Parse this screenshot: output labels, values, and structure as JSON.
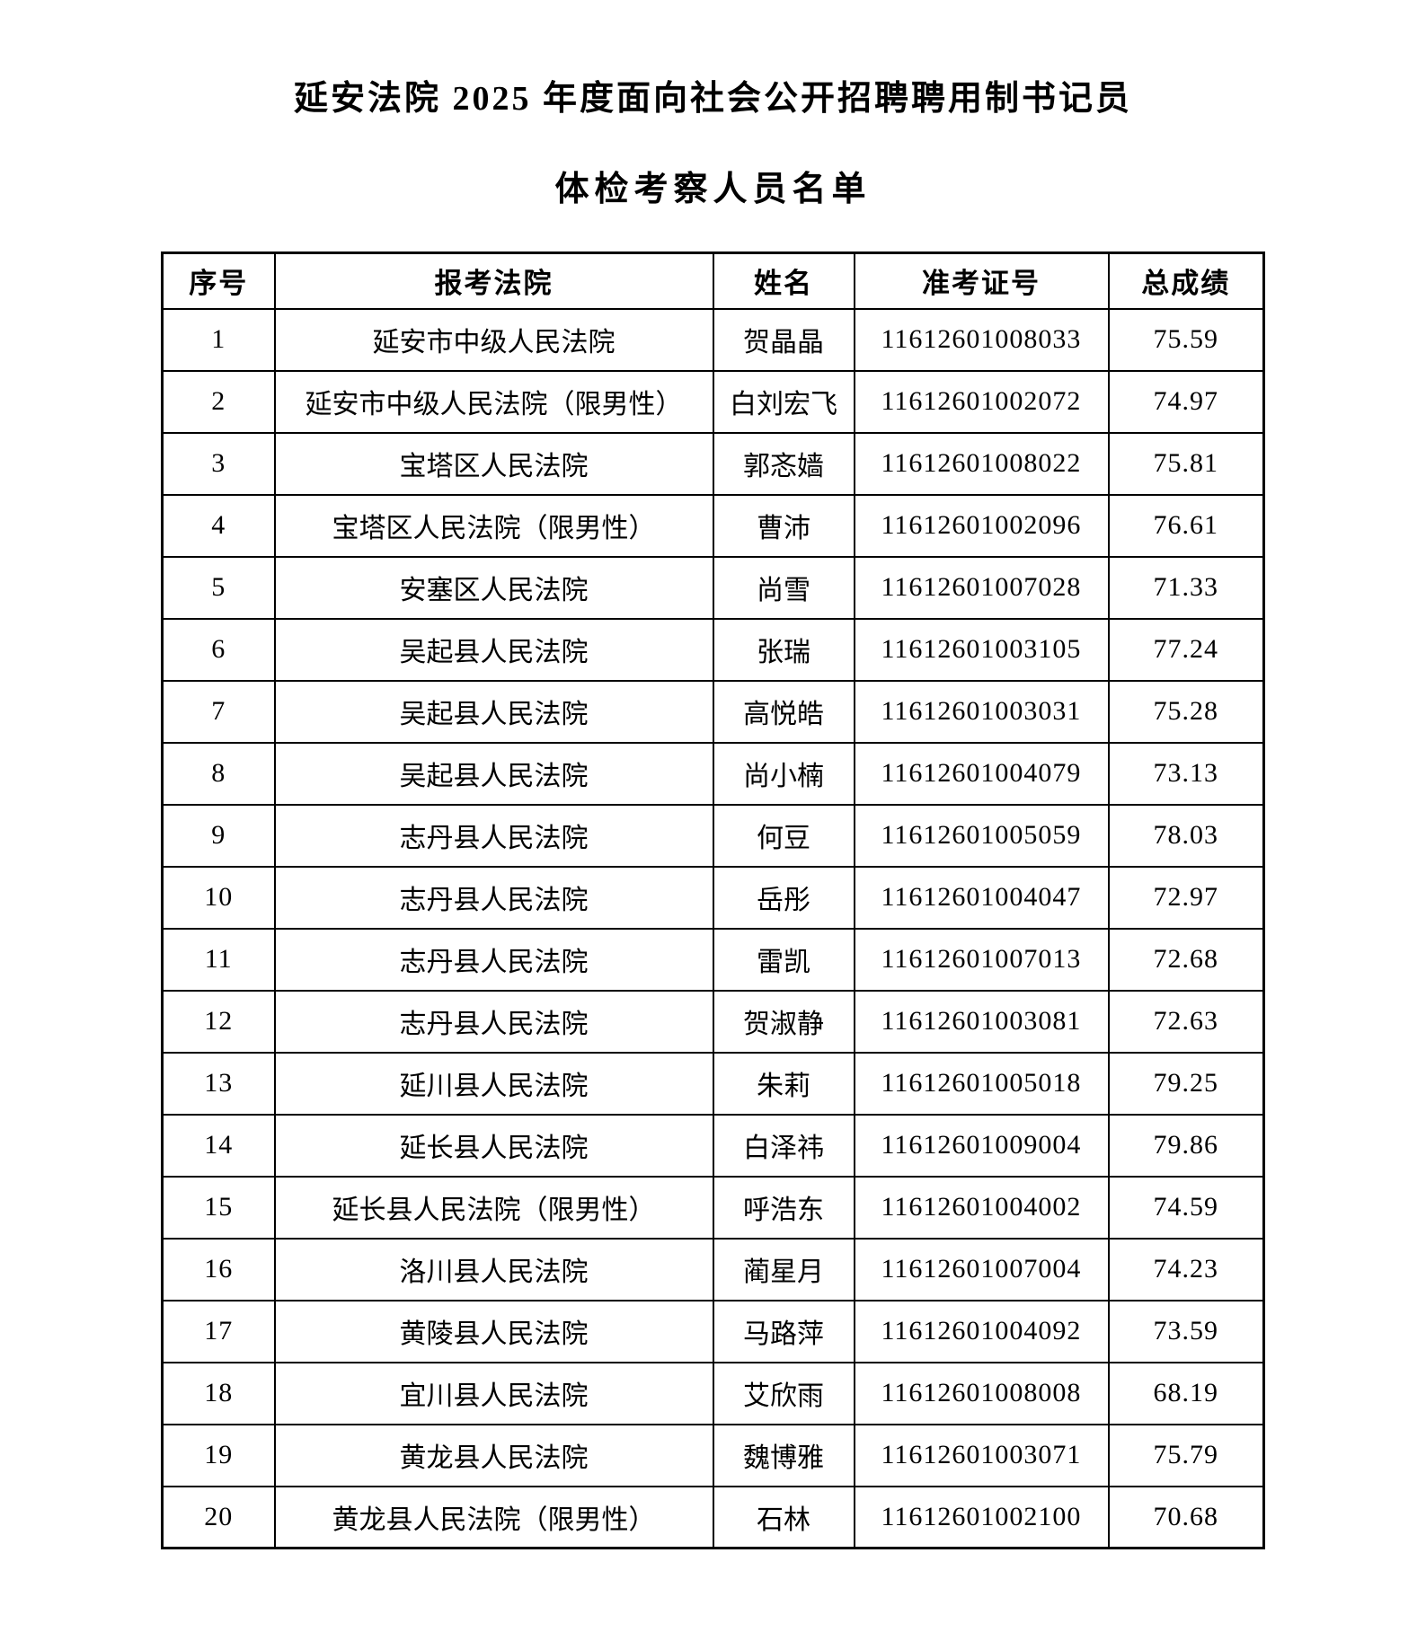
{
  "page": {
    "title_line1": "延安法院 2025 年度面向社会公开招聘聘用制书记员",
    "title_line2": "体检考察人员名单"
  },
  "table": {
    "headers": [
      "序号",
      "报考法院",
      "姓名",
      "准考证号",
      "总成绩"
    ],
    "rows": [
      {
        "no": "1",
        "court": "延安市中级人民法院",
        "name": "贺晶晶",
        "ticket": "11612601008033",
        "score": "75.59"
      },
      {
        "no": "2",
        "court": "延安市中级人民法院（限男性）",
        "name": "白刘宏飞",
        "ticket": "11612601002072",
        "score": "74.97"
      },
      {
        "no": "3",
        "court": "宝塔区人民法院",
        "name": "郭忞嫱",
        "ticket": "11612601008022",
        "score": "75.81"
      },
      {
        "no": "4",
        "court": "宝塔区人民法院（限男性）",
        "name": "曹沛",
        "ticket": "11612601002096",
        "score": "76.61"
      },
      {
        "no": "5",
        "court": "安塞区人民法院",
        "name": "尚雪",
        "ticket": "11612601007028",
        "score": "71.33"
      },
      {
        "no": "6",
        "court": "吴起县人民法院",
        "name": "张瑞",
        "ticket": "11612601003105",
        "score": "77.24"
      },
      {
        "no": "7",
        "court": "吴起县人民法院",
        "name": "高悦皓",
        "ticket": "11612601003031",
        "score": "75.28"
      },
      {
        "no": "8",
        "court": "吴起县人民法院",
        "name": "尚小楠",
        "ticket": "11612601004079",
        "score": "73.13"
      },
      {
        "no": "9",
        "court": "志丹县人民法院",
        "name": "何豆",
        "ticket": "11612601005059",
        "score": "78.03"
      },
      {
        "no": "10",
        "court": "志丹县人民法院",
        "name": "岳彤",
        "ticket": "11612601004047",
        "score": "72.97"
      },
      {
        "no": "11",
        "court": "志丹县人民法院",
        "name": "雷凯",
        "ticket": "11612601007013",
        "score": "72.68"
      },
      {
        "no": "12",
        "court": "志丹县人民法院",
        "name": "贺淑静",
        "ticket": "11612601003081",
        "score": "72.63"
      },
      {
        "no": "13",
        "court": "延川县人民法院",
        "name": "朱莉",
        "ticket": "11612601005018",
        "score": "79.25"
      },
      {
        "no": "14",
        "court": "延长县人民法院",
        "name": "白泽祎",
        "ticket": "11612601009004",
        "score": "79.86"
      },
      {
        "no": "15",
        "court": "延长县人民法院（限男性）",
        "name": "呼浩东",
        "ticket": "11612601004002",
        "score": "74.59"
      },
      {
        "no": "16",
        "court": "洛川县人民法院",
        "name": "蔺星月",
        "ticket": "11612601007004",
        "score": "74.23"
      },
      {
        "no": "17",
        "court": "黄陵县人民法院",
        "name": "马路萍",
        "ticket": "11612601004092",
        "score": "73.59"
      },
      {
        "no": "18",
        "court": "宜川县人民法院",
        "name": "艾欣雨",
        "ticket": "11612601008008",
        "score": "68.19"
      },
      {
        "no": "19",
        "court": "黄龙县人民法院",
        "name": "魏博雅",
        "ticket": "11612601003071",
        "score": "75.79"
      },
      {
        "no": "20",
        "court": "黄龙县人民法院（限男性）",
        "name": "石林",
        "ticket": "11612601002100",
        "score": "70.68"
      }
    ]
  }
}
